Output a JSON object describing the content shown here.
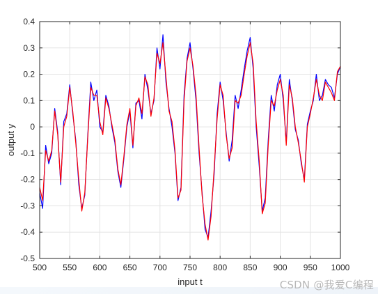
{
  "chart_data": {
    "type": "line",
    "title": "",
    "xlabel": "input t",
    "ylabel": "output y",
    "xlim": [
      500,
      1000
    ],
    "ylim": [
      -0.5,
      0.4
    ],
    "x_ticks": [
      500,
      550,
      600,
      650,
      700,
      750,
      800,
      850,
      900,
      950,
      1000
    ],
    "y_ticks": [
      -0.5,
      -0.4,
      -0.3,
      -0.2,
      -0.1,
      0,
      0.1,
      0.2,
      0.3,
      0.4
    ],
    "grid": true,
    "series": [
      {
        "color": "#0000ff",
        "x": [
          500,
          505,
          510,
          515,
          520,
          525,
          530,
          535,
          540,
          545,
          550,
          555,
          560,
          565,
          570,
          575,
          580,
          585,
          590,
          595,
          600,
          605,
          610,
          615,
          620,
          625,
          630,
          635,
          640,
          645,
          650,
          655,
          660,
          665,
          670,
          675,
          680,
          685,
          690,
          695,
          700,
          705,
          710,
          715,
          720,
          725,
          730,
          735,
          740,
          745,
          750,
          755,
          760,
          765,
          770,
          775,
          780,
          785,
          790,
          795,
          800,
          805,
          810,
          815,
          820,
          825,
          830,
          835,
          840,
          845,
          850,
          855,
          860,
          865,
          870,
          875,
          880,
          885,
          890,
          895,
          900,
          905,
          910,
          915,
          920,
          925,
          930,
          935,
          940,
          945,
          950,
          955,
          960,
          965,
          970,
          975,
          980,
          985,
          990,
          995,
          1000
        ],
        "y": [
          -0.25,
          -0.31,
          -0.07,
          -0.14,
          -0.1,
          0.07,
          -0.02,
          -0.22,
          0.02,
          0.05,
          0.16,
          0.05,
          -0.05,
          -0.22,
          -0.31,
          -0.26,
          -0.03,
          0.17,
          0.1,
          0.14,
          0.0,
          -0.02,
          0.12,
          0.08,
          0.0,
          -0.06,
          -0.17,
          -0.23,
          -0.12,
          0.0,
          0.06,
          -0.08,
          0.09,
          0.1,
          0.03,
          0.2,
          0.14,
          0.05,
          0.1,
          0.3,
          0.22,
          0.35,
          0.17,
          0.07,
          0.0,
          -0.1,
          -0.28,
          -0.23,
          0.12,
          0.26,
          0.32,
          0.22,
          0.1,
          -0.1,
          -0.25,
          -0.39,
          -0.42,
          -0.32,
          -0.18,
          0.05,
          0.17,
          0.1,
          -0.02,
          -0.13,
          -0.05,
          0.12,
          0.07,
          0.14,
          0.22,
          0.29,
          0.34,
          0.22,
          0.0,
          -0.15,
          -0.32,
          -0.27,
          -0.05,
          0.12,
          0.06,
          0.16,
          0.2,
          0.1,
          -0.06,
          0.18,
          0.1,
          -0.01,
          -0.05,
          -0.14,
          -0.2,
          0.01,
          0.06,
          0.1,
          0.2,
          0.1,
          0.12,
          0.18,
          0.16,
          0.15,
          0.11,
          0.2,
          0.23
        ]
      },
      {
        "color": "#ff0000",
        "x": [
          500,
          505,
          510,
          515,
          520,
          525,
          530,
          535,
          540,
          545,
          550,
          555,
          560,
          565,
          570,
          575,
          580,
          585,
          590,
          595,
          600,
          605,
          610,
          615,
          620,
          625,
          630,
          635,
          640,
          645,
          650,
          655,
          660,
          665,
          670,
          675,
          680,
          685,
          690,
          695,
          700,
          705,
          710,
          715,
          720,
          725,
          730,
          735,
          740,
          745,
          750,
          755,
          760,
          765,
          770,
          775,
          780,
          785,
          790,
          795,
          800,
          805,
          810,
          815,
          820,
          825,
          830,
          835,
          840,
          845,
          850,
          855,
          860,
          865,
          870,
          875,
          880,
          885,
          890,
          895,
          900,
          905,
          910,
          915,
          920,
          925,
          930,
          935,
          940,
          945,
          950,
          955,
          960,
          965,
          970,
          975,
          980,
          985,
          990,
          995,
          1000
        ],
        "y": [
          -0.23,
          -0.28,
          -0.09,
          -0.13,
          -0.09,
          0.06,
          -0.03,
          -0.21,
          0.0,
          0.04,
          0.15,
          0.06,
          -0.06,
          -0.2,
          -0.32,
          -0.25,
          -0.04,
          0.15,
          0.12,
          0.12,
          0.02,
          -0.03,
          0.11,
          0.07,
          0.01,
          -0.05,
          -0.16,
          -0.22,
          -0.11,
          0.01,
          0.07,
          -0.07,
          0.08,
          0.11,
          0.05,
          0.19,
          0.16,
          0.04,
          0.11,
          0.28,
          0.24,
          0.32,
          0.19,
          0.06,
          0.02,
          -0.09,
          -0.27,
          -0.24,
          0.1,
          0.25,
          0.3,
          0.23,
          0.12,
          -0.08,
          -0.26,
          -0.37,
          -0.43,
          -0.34,
          -0.16,
          0.03,
          0.16,
          0.12,
          -0.03,
          -0.12,
          -0.08,
          0.1,
          0.09,
          0.12,
          0.2,
          0.27,
          0.32,
          0.24,
          0.02,
          -0.13,
          -0.33,
          -0.29,
          -0.07,
          0.1,
          0.08,
          0.14,
          0.18,
          0.12,
          -0.07,
          0.16,
          0.11,
          0.0,
          -0.06,
          -0.13,
          -0.21,
          0.0,
          0.05,
          0.11,
          0.18,
          0.12,
          0.1,
          0.17,
          0.15,
          0.13,
          0.1,
          0.21,
          0.23
        ]
      }
    ]
  },
  "watermark": "CSDN @我爱C编程"
}
